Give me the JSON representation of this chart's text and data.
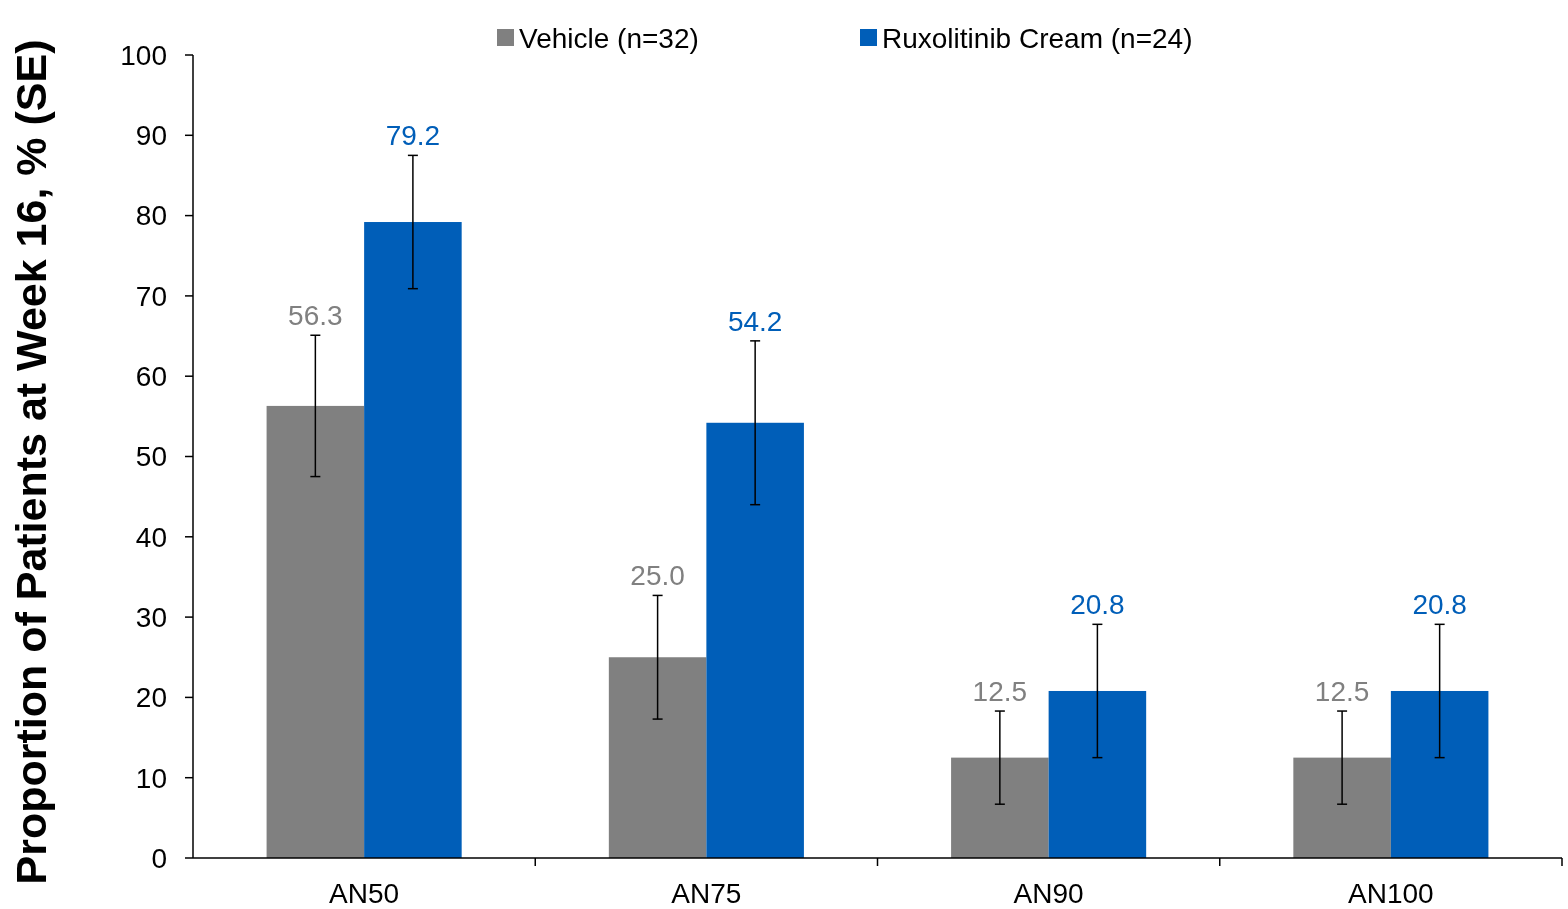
{
  "chart_data": {
    "type": "bar",
    "ylabel": "Proportion of Patients at Week 16, % (SE)",
    "categories": [
      "AN50",
      "AN75",
      "AN90",
      "AN100"
    ],
    "series": [
      {
        "name": "Vehicle (n=32)",
        "color": "#808080",
        "values": [
          56.3,
          25.0,
          12.5,
          12.5
        ],
        "value_labels": [
          "56.3",
          "25.0",
          "12.5",
          "12.5"
        ],
        "errors": [
          8.8,
          7.7,
          5.8,
          5.8
        ]
      },
      {
        "name": "Ruxolitinib Cream (n=24)",
        "color": "#005eb8",
        "values": [
          79.2,
          54.2,
          20.8,
          20.8
        ],
        "value_labels": [
          "79.2",
          "54.2",
          "20.8",
          "20.8"
        ],
        "errors": [
          8.3,
          10.2,
          8.3,
          8.3
        ]
      }
    ],
    "ylim": [
      0,
      100
    ],
    "yticks": [
      0,
      10,
      20,
      30,
      40,
      50,
      60,
      70,
      80,
      90,
      100
    ],
    "legend": "top",
    "grid": false
  }
}
